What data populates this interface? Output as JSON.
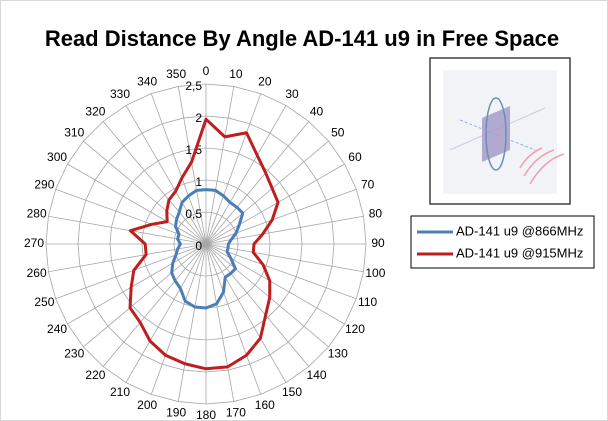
{
  "chart_data": {
    "type": "radar",
    "title": "Read Distance By Angle AD-141 u9 in Free Space",
    "categories": [
      "0",
      "10",
      "20",
      "30",
      "40",
      "50",
      "60",
      "70",
      "80",
      "90",
      "100",
      "110",
      "120",
      "130",
      "140",
      "150",
      "160",
      "170",
      "180",
      "190",
      "200",
      "210",
      "220",
      "230",
      "240",
      "250",
      "260",
      "270",
      "280",
      "290",
      "300",
      "310",
      "320",
      "330",
      "340",
      "350"
    ],
    "ylim": [
      0,
      2.5
    ],
    "yticks": [
      0,
      {
        "value": 0.5,
        "label": "0,5"
      },
      1,
      {
        "value": 1.5,
        "label": "1,5"
      },
      2,
      {
        "value": 2.5,
        "label": "2,5"
      }
    ],
    "grid": true,
    "legend": "right",
    "series": [
      {
        "name": "AD-141 u9 @866MHz",
        "color": "#4a7ebb",
        "values": [
          0.85,
          0.85,
          0.8,
          0.75,
          0.75,
          0.75,
          0.6,
          0.5,
          0.4,
          0.35,
          0.35,
          0.35,
          0.45,
          0.6,
          0.6,
          0.6,
          0.8,
          0.95,
          1.0,
          1.0,
          0.95,
          0.8,
          0.75,
          0.7,
          0.6,
          0.5,
          0.45,
          0.4,
          0.45,
          0.45,
          0.55,
          0.6,
          0.65,
          0.75,
          0.8,
          0.85
        ]
      },
      {
        "name": "AD-141 u9 @915MHz",
        "color": "#be1e1e",
        "values": [
          1.95,
          1.7,
          1.85,
          1.6,
          1.45,
          1.35,
          1.3,
          1.1,
          0.9,
          0.75,
          0.75,
          0.95,
          1.15,
          1.3,
          1.45,
          1.7,
          1.85,
          1.95,
          1.95,
          1.9,
          1.85,
          1.75,
          1.6,
          1.55,
          1.35,
          1.2,
          0.95,
          0.95,
          1.2,
          0.9,
          0.7,
          0.8,
          0.9,
          0.95,
          1.1,
          1.3
        ]
      }
    ]
  }
}
